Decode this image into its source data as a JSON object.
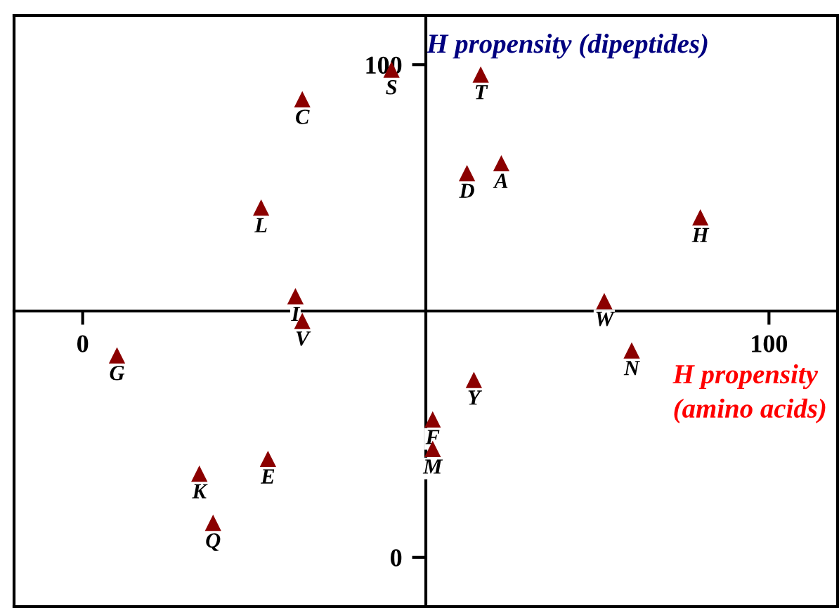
{
  "chart_data": {
    "type": "scatter",
    "xlabel": "H propensity\n(amino acids)",
    "ylabel": "H propensity (dipeptides)",
    "xlim": [
      -10,
      110
    ],
    "ylim": [
      -10,
      110
    ],
    "xticks": [
      0,
      100
    ],
    "yticks": [
      0,
      100
    ],
    "marker": "triangle",
    "grid": false,
    "series": [
      {
        "color": "#8b0000",
        "x": [
          61,
          32,
          56,
          27,
          51,
          5,
          90,
          31,
          17,
          26,
          51,
          80,
          19,
          45,
          58,
          32,
          76,
          57
        ],
        "values": [
          80,
          93,
          78,
          20,
          28,
          41,
          69,
          53,
          17,
          71,
          22,
          42,
          7,
          99,
          98,
          48,
          52,
          36
        ]
      }
    ],
    "annotations": [
      {
        "text": "A",
        "x": 61,
        "y": 80
      },
      {
        "text": "C",
        "x": 32,
        "y": 93
      },
      {
        "text": "D",
        "x": 56,
        "y": 78
      },
      {
        "text": "E",
        "x": 27,
        "y": 20
      },
      {
        "text": "F",
        "x": 51,
        "y": 28
      },
      {
        "text": "G",
        "x": 5,
        "y": 41
      },
      {
        "text": "H",
        "x": 90,
        "y": 69
      },
      {
        "text": "I",
        "x": 31,
        "y": 53
      },
      {
        "text": "K",
        "x": 17,
        "y": 17
      },
      {
        "text": "L",
        "x": 26,
        "y": 71
      },
      {
        "text": "M",
        "x": 51,
        "y": 22
      },
      {
        "text": "N",
        "x": 80,
        "y": 42
      },
      {
        "text": "Q",
        "x": 19,
        "y": 7
      },
      {
        "text": "S",
        "x": 45,
        "y": 99
      },
      {
        "text": "T",
        "x": 58,
        "y": 98
      },
      {
        "text": "V",
        "x": 32,
        "y": 48
      },
      {
        "text": "W",
        "x": 76,
        "y": 52
      },
      {
        "text": "Y",
        "x": 57,
        "y": 36
      }
    ]
  }
}
